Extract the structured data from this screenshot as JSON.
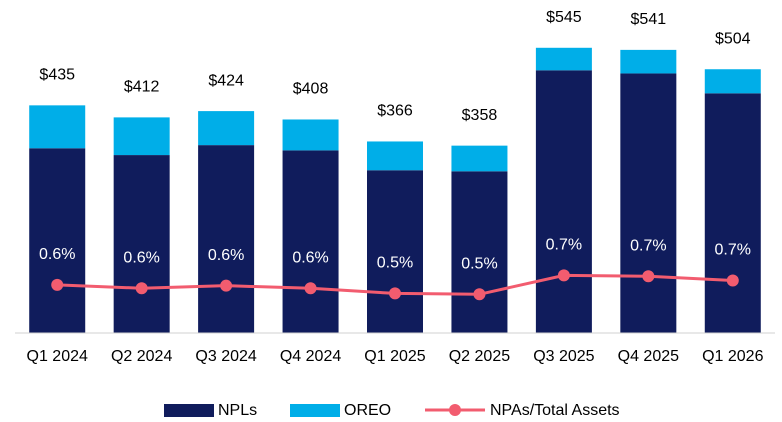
{
  "chart_data": {
    "type": "bar",
    "categories": [
      "Q1 2024",
      "Q2 2024",
      "Q3 2024",
      "Q4 2024",
      "Q1 2025",
      "Q2 2025",
      "Q3 2025",
      "Q4 2025",
      "Q1 2026"
    ],
    "series": [
      {
        "name": "NPLs",
        "color": "#101c5c",
        "values": [
          353,
          340,
          359,
          349,
          311,
          309,
          502,
          496,
          458
        ]
      },
      {
        "name": "OREO",
        "color": "#00aee8",
        "values": [
          82,
          72,
          65,
          59,
          55,
          49,
          43,
          45,
          46
        ]
      },
      {
        "name": "NPAs/Total Assets",
        "color": "#f25c6f",
        "type": "line",
        "axis": "y2",
        "values": [
          0.61,
          0.57,
          0.6,
          0.57,
          0.51,
          0.5,
          0.72,
          0.71,
          0.66
        ],
        "value_labels": [
          "0.6%",
          "0.6%",
          "0.6%",
          "0.6%",
          "0.5%",
          "0.5%",
          "0.7%",
          "0.7%",
          "0.7%"
        ]
      }
    ],
    "totals": [
      435,
      412,
      424,
      408,
      366,
      358,
      545,
      541,
      504
    ],
    "total_labels": [
      "$435",
      "$412",
      "$424",
      "$408",
      "$366",
      "$358",
      "$545",
      "$541",
      "$504"
    ],
    "stacked": true,
    "ylim": [
      0,
      600
    ],
    "y2lim": [
      0.05,
      3.7
    ]
  }
}
